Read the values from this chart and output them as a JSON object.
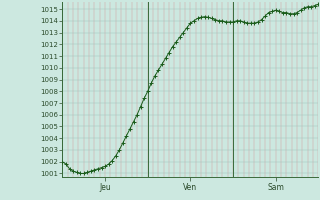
{
  "background_color": "#cce8e0",
  "plot_bg_color": "#cce8e0",
  "line_color": "#1a5c1a",
  "marker_color": "#1a5c1a",
  "grid_color_v": "#d4a0a0",
  "grid_color_h": "#a0c4bc",
  "tick_label_color": "#2a4a2a",
  "day_line_color": "#3a6a3a",
  "ylim_min": 1000.7,
  "ylim_max": 1015.6,
  "yticks": [
    1001,
    1002,
    1003,
    1004,
    1005,
    1006,
    1007,
    1008,
    1009,
    1010,
    1011,
    1012,
    1013,
    1014,
    1015
  ],
  "day_labels": [
    "Jeu",
    "Ven",
    "Sam"
  ],
  "xlim_min": 0.0,
  "xlim_max": 2.0,
  "x": [
    0.0,
    0.0278,
    0.0556,
    0.0833,
    0.1111,
    0.1389,
    0.1667,
    0.1944,
    0.2222,
    0.25,
    0.2778,
    0.3056,
    0.3333,
    0.3611,
    0.3889,
    0.4167,
    0.4444,
    0.4722,
    0.5,
    0.5278,
    0.5556,
    0.5833,
    0.6111,
    0.6389,
    0.6667,
    0.6944,
    0.7222,
    0.75,
    0.7778,
    0.8056,
    0.8333,
    0.8611,
    0.8889,
    0.9167,
    0.9444,
    0.9722,
    1.0,
    1.0278,
    1.0556,
    1.0833,
    1.1111,
    1.1389,
    1.1667,
    1.1944,
    1.2222,
    1.25,
    1.2778,
    1.3056,
    1.3333,
    1.3611,
    1.3889,
    1.4167,
    1.4444,
    1.4722,
    1.5,
    1.5278,
    1.5556,
    1.5833,
    1.6111,
    1.6389,
    1.6667,
    1.6944,
    1.7222,
    1.75,
    1.7778,
    1.8056,
    1.8333,
    1.8611,
    1.8889,
    1.9167,
    1.9444,
    1.9722,
    2.0
  ],
  "y": [
    1002.0,
    1001.8,
    1001.4,
    1001.2,
    1001.1,
    1001.0,
    1001.0,
    1001.1,
    1001.2,
    1001.3,
    1001.4,
    1001.5,
    1001.6,
    1001.8,
    1002.1,
    1002.5,
    1003.0,
    1003.6,
    1004.2,
    1004.8,
    1005.4,
    1006.0,
    1006.7,
    1007.4,
    1008.0,
    1008.7,
    1009.3,
    1009.8,
    1010.3,
    1010.8,
    1011.3,
    1011.8,
    1012.2,
    1012.6,
    1013.0,
    1013.4,
    1013.8,
    1014.0,
    1014.2,
    1014.3,
    1014.35,
    1014.3,
    1014.2,
    1014.1,
    1014.0,
    1014.0,
    1013.9,
    1013.9,
    1013.9,
    1014.0,
    1014.0,
    1013.9,
    1013.8,
    1013.8,
    1013.8,
    1013.9,
    1014.1,
    1014.4,
    1014.7,
    1014.8,
    1014.9,
    1014.8,
    1014.7,
    1014.7,
    1014.6,
    1014.6,
    1014.7,
    1014.9,
    1015.1,
    1015.2,
    1015.2,
    1015.3,
    1015.4
  ]
}
